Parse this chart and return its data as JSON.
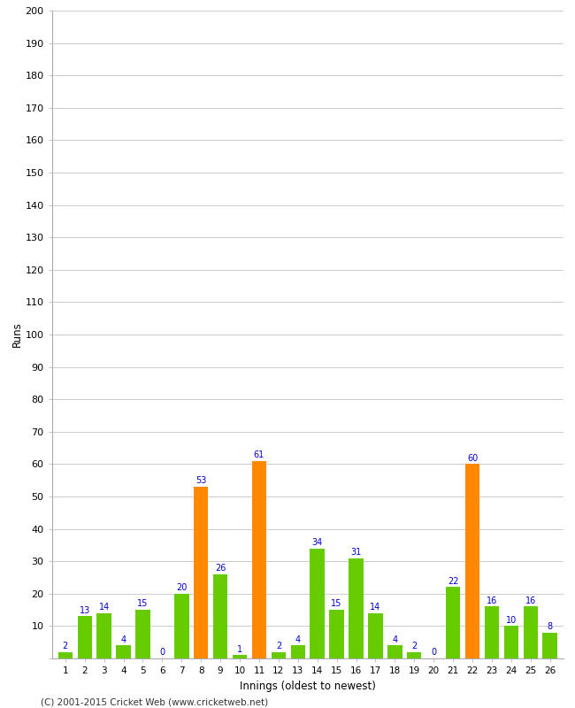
{
  "title": "",
  "xlabel": "Innings (oldest to newest)",
  "ylabel": "Runs",
  "values": [
    2,
    13,
    14,
    4,
    15,
    0,
    20,
    53,
    26,
    1,
    61,
    2,
    4,
    34,
    15,
    31,
    14,
    4,
    2,
    0,
    22,
    60,
    16,
    10,
    16,
    8
  ],
  "colors": [
    "#66cc00",
    "#66cc00",
    "#66cc00",
    "#66cc00",
    "#66cc00",
    "#66cc00",
    "#66cc00",
    "#ff8800",
    "#66cc00",
    "#66cc00",
    "#ff8800",
    "#66cc00",
    "#66cc00",
    "#66cc00",
    "#66cc00",
    "#66cc00",
    "#66cc00",
    "#66cc00",
    "#66cc00",
    "#66cc00",
    "#66cc00",
    "#ff8800",
    "#66cc00",
    "#66cc00",
    "#66cc00",
    "#66cc00"
  ],
  "xlabels": [
    "1",
    "2",
    "3",
    "4",
    "5",
    "6",
    "7",
    "8",
    "9",
    "10",
    "11",
    "12",
    "13",
    "14",
    "15",
    "16",
    "17",
    "18",
    "19",
    "20",
    "21",
    "22",
    "23",
    "24",
    "25",
    "26"
  ],
  "ylim": [
    0,
    200
  ],
  "yticks": [
    0,
    10,
    20,
    30,
    40,
    50,
    60,
    70,
    80,
    90,
    100,
    110,
    120,
    130,
    140,
    150,
    160,
    170,
    180,
    190,
    200
  ],
  "label_color": "#0000cc",
  "bar_width": 0.75,
  "background_color": "#ffffff",
  "grid_color": "#cccccc",
  "footer": "(C) 2001-2015 Cricket Web (www.cricketweb.net)"
}
